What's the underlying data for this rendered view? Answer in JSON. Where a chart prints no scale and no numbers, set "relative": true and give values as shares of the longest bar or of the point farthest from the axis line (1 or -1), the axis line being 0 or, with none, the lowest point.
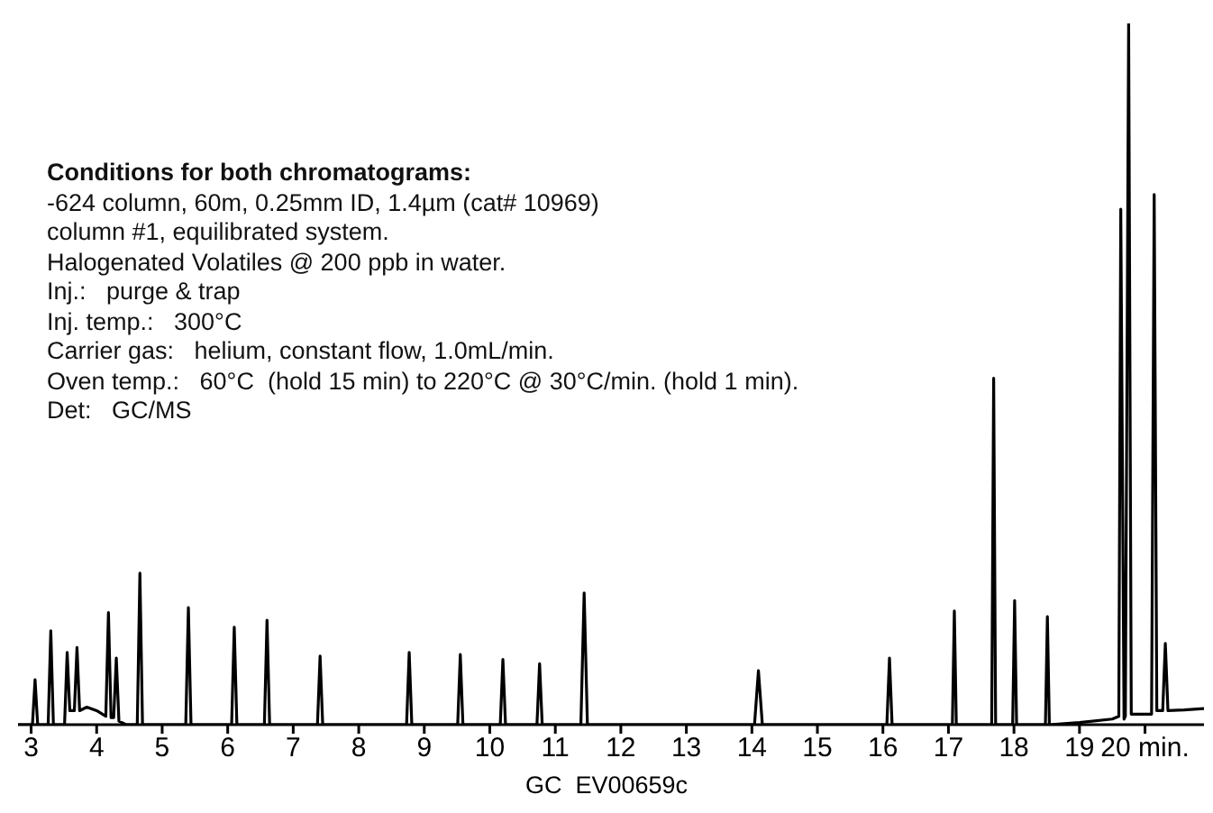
{
  "chart_data": {
    "type": "line",
    "relative": true,
    "x": [
      2.8,
      3.02,
      3.06,
      3.1,
      3.26,
      3.3,
      3.34,
      3.51,
      3.55,
      3.59,
      3.66,
      3.7,
      3.74,
      3.85,
      4.0,
      4.14,
      4.18,
      4.22,
      4.26,
      4.3,
      4.34,
      4.45,
      4.62,
      4.66,
      4.7,
      4.9,
      5.36,
      5.4,
      5.44,
      6.06,
      6.1,
      6.14,
      6.56,
      6.6,
      6.64,
      7.37,
      7.41,
      7.45,
      8.73,
      8.77,
      8.81,
      9.51,
      9.55,
      9.59,
      10.16,
      10.2,
      10.24,
      10.72,
      10.76,
      10.8,
      11.39,
      11.44,
      11.49,
      14.04,
      14.1,
      14.16,
      16.06,
      16.1,
      16.14,
      17.06,
      17.09,
      17.12,
      17.66,
      17.69,
      17.72,
      17.98,
      18.01,
      18.04,
      18.48,
      18.51,
      18.54,
      19.0,
      19.5,
      19.6,
      19.63,
      19.68,
      19.7,
      19.75,
      19.79,
      19.9,
      20.1,
      20.14,
      20.18,
      20.27,
      20.31,
      20.35,
      20.6,
      20.9
    ],
    "values": [
      0,
      0,
      0.064,
      0,
      0,
      0.134,
      0,
      0,
      0.103,
      0.02,
      0.02,
      0.11,
      0.02,
      0.025,
      0.02,
      0.012,
      0.16,
      0.01,
      0.01,
      0.095,
      0.005,
      0,
      0,
      0.216,
      0,
      0,
      0,
      0.167,
      0,
      0,
      0.139,
      0,
      0,
      0.149,
      0,
      0,
      0.098,
      0,
      0,
      0.103,
      0,
      0,
      0.1,
      0,
      0,
      0.093,
      0,
      0,
      0.087,
      0,
      0,
      0.188,
      0,
      0,
      0.077,
      0,
      0,
      0.095,
      0,
      0,
      0.162,
      0,
      0,
      0.494,
      0,
      0,
      0.177,
      0,
      0,
      0.154,
      0,
      0.003,
      0.008,
      0.012,
      0.735,
      0.008,
      0.012,
      1.0,
      0.015,
      0.015,
      0.015,
      0.756,
      0.02,
      0.02,
      0.116,
      0.02,
      0.021,
      0.023
    ],
    "color": "#000000",
    "marker": "none",
    "line_style": "solid",
    "grid": false,
    "legend": false,
    "xlim": [
      2.8,
      20.9
    ],
    "xticks": [
      3,
      4,
      5,
      6,
      7,
      8,
      9,
      10,
      11,
      12,
      13,
      14,
      15,
      16,
      17,
      18,
      19,
      {
        "value": 20,
        "label": "20 min."
      }
    ],
    "annotations": [
      "Conditions for both chromatograms:",
      "-624 column, 60m, 0.25mm ID, 1.4µm (cat# 10969)",
      "column #1, equilibrated system.",
      "Halogenated Volatiles @ 200 ppb in water.",
      "Inj.:   purge & trap",
      "Inj. temp.:   300°C",
      "Carrier gas:   helium, constant flow, 1.0mL/min.",
      "Oven temp.:   60°C  (hold 15 min) to 220°C @ 30°C/min. (hold 1 min).",
      "Det:   GC/MS",
      "GC  EV00659c"
    ]
  }
}
